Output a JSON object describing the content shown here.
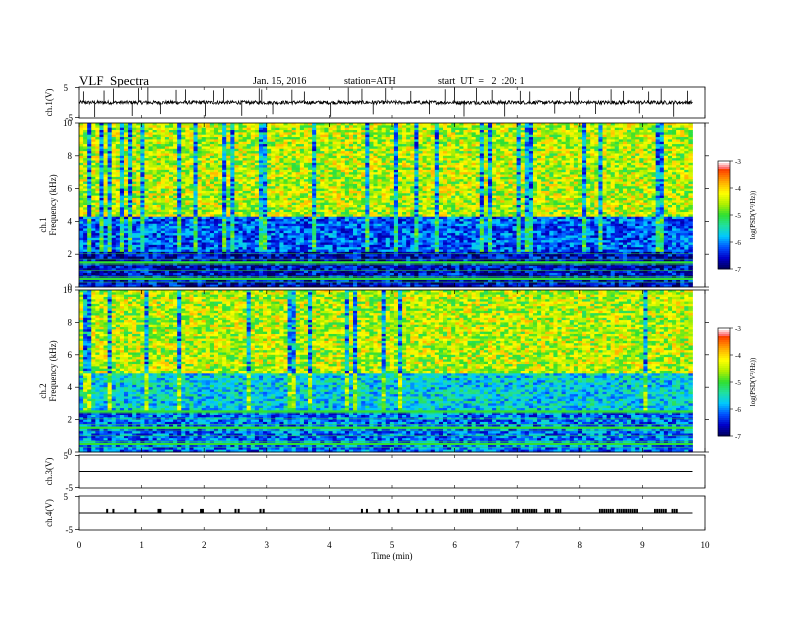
{
  "header": {
    "title": "VLF  Spectra",
    "date": "Jan. 15, 2016",
    "station": "station=ATH",
    "start": "start  UT  =   2  :20: 1"
  },
  "colors": {
    "spectrogram_scale": [
      "#00005a",
      "#0000c8",
      "#0050ff",
      "#00c8ff",
      "#20e0a0",
      "#30e030",
      "#b0f000",
      "#ffff00",
      "#ffb000",
      "#ff5000",
      "#e00000",
      "#ffffff"
    ],
    "trace": "#000000",
    "background": "#ffffff"
  },
  "chart_data": {
    "type": "heatmap",
    "x_axis": {
      "label": "Time  (min)",
      "range": [
        0,
        10
      ],
      "ticks": [
        "0",
        "1",
        "2",
        "3",
        "4",
        "5",
        "6",
        "7",
        "8",
        "9",
        "10"
      ],
      "data_end": 9.8
    },
    "panels": [
      {
        "id": "ch1_waveform",
        "kind": "line",
        "ylabel": "ch.1(V)",
        "ylim": [
          -5,
          5
        ],
        "yticks": [
          "5",
          "-5"
        ],
        "baseline": 0,
        "noise_amplitude": 0.6,
        "spike_times": [
          0.07,
          0.25,
          0.4,
          0.55,
          0.85,
          0.95,
          1.1,
          1.3,
          1.55,
          1.7,
          2.02,
          2.15,
          2.31,
          2.6,
          2.88,
          2.92,
          3.1,
          3.4,
          3.6,
          4.02,
          4.3,
          4.52,
          4.7,
          4.9,
          5.3,
          5.6,
          5.85,
          6.0,
          6.15,
          6.35,
          6.6,
          6.8,
          7.05,
          7.2,
          7.6,
          7.85,
          7.98,
          8.25,
          8.5,
          8.7,
          8.95,
          9.1,
          9.3,
          9.5,
          9.72
        ]
      },
      {
        "id": "ch1_spectrogram",
        "kind": "heatmap",
        "ylabel_top": "ch.1",
        "ylabel": "Frequency  (kHz)",
        "ylim": [
          0,
          10
        ],
        "yticks": [
          "0",
          "2",
          "4",
          "6",
          "8",
          "10"
        ],
        "zlabel": "log(PSD(V²/Hz))",
        "zrange": [
          -7,
          -3
        ],
        "zticks": [
          "-3",
          "-4",
          "-5",
          "-6",
          "-7"
        ],
        "low_band_top_khz": 4.3,
        "noise_floor_top_khz": 2.2,
        "upper_band_level": -4.5,
        "low_band_level": -6.4
      },
      {
        "id": "ch2_spectrogram",
        "kind": "heatmap",
        "ylabel_top": "ch.2",
        "ylabel": "Frequency  (kHz)",
        "ylim": [
          0,
          10
        ],
        "yticks": [
          "0",
          "2",
          "4",
          "6",
          "8",
          "10"
        ],
        "zlabel": "log(PSD(V²/Hz))",
        "zrange": [
          -7,
          -3
        ],
        "zticks": [
          "-3",
          "-4",
          "-5",
          "-6",
          "-7"
        ],
        "low_band_top_khz": 4.8,
        "noise_floor_top_khz": 2.5,
        "upper_band_level": -4.5,
        "low_band_level": -5.9
      },
      {
        "id": "ch3_waveform",
        "kind": "line",
        "ylabel": "ch.3(V)",
        "ylim": [
          -5,
          5
        ],
        "yticks": [
          "5",
          "-5"
        ],
        "baseline": 0
      },
      {
        "id": "ch4_waveform",
        "kind": "line",
        "ylabel": "ch.4(V)",
        "ylim": [
          -5,
          5
        ],
        "yticks": [
          "5",
          "-5"
        ],
        "baseline": 0,
        "pulse_times": [
          0.45,
          0.55,
          0.9,
          1.27,
          1.3,
          1.65,
          1.95,
          1.98,
          2.25,
          2.5,
          2.55,
          2.9,
          2.95,
          4.52,
          4.6,
          4.8,
          4.95,
          5.1,
          5.4,
          5.55,
          5.65,
          5.85
        ],
        "pulse_dense_intervals": [
          [
            6.0,
            6.75
          ],
          [
            6.92,
            7.72
          ],
          [
            8.25,
            8.95
          ],
          [
            9.2,
            9.55
          ]
        ],
        "pulse_height": 1.2
      }
    ]
  }
}
